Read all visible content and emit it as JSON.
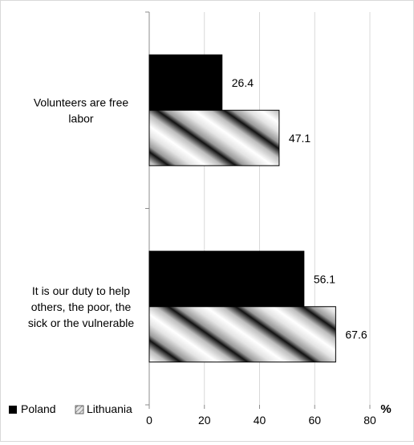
{
  "chart_data": {
    "type": "bar",
    "orientation": "horizontal",
    "categories": [
      "Volunteers are free labor",
      "It is our duty to help others, the poor, the sick or the vulnerable"
    ],
    "category_lines": [
      [
        "Volunteers are free",
        "labor"
      ],
      [
        "It is our duty to help",
        "others, the poor, the",
        "sick or the vulnerable"
      ]
    ],
    "series": [
      {
        "name": "Poland",
        "values": [
          26.4,
          56.1
        ],
        "color": "#000000",
        "pattern": "solid"
      },
      {
        "name": "Lithuania",
        "values": [
          47.1,
          67.6
        ],
        "color": "#d0d0d0",
        "pattern": "diagonal-gradient-stripes"
      }
    ],
    "value_labels": [
      [
        "26.4",
        "56.1"
      ],
      [
        "47.1",
        "67.6"
      ]
    ],
    "xlim": [
      0,
      80
    ],
    "xticks": [
      "0",
      "20",
      "40",
      "60",
      "80"
    ],
    "xlabel": "%",
    "grid": "vertical",
    "legend_position": "bottom-left"
  }
}
